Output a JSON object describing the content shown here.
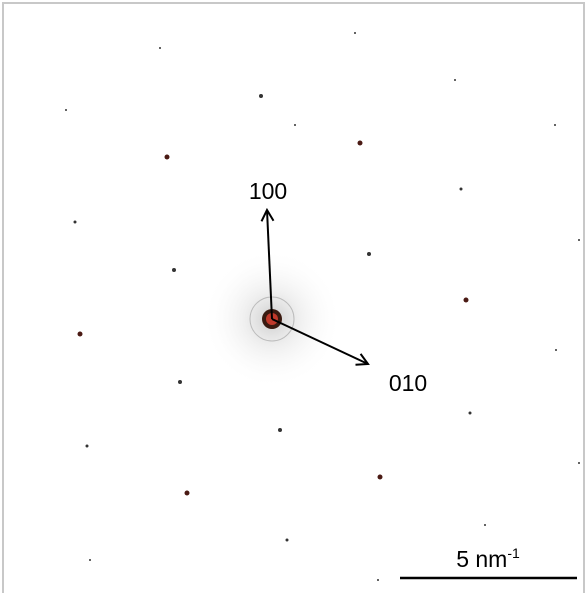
{
  "labels": {
    "direction_1": "100",
    "direction_2": "010"
  },
  "scale_bar": {
    "text": "5 nm",
    "exponent": "-1"
  }
}
